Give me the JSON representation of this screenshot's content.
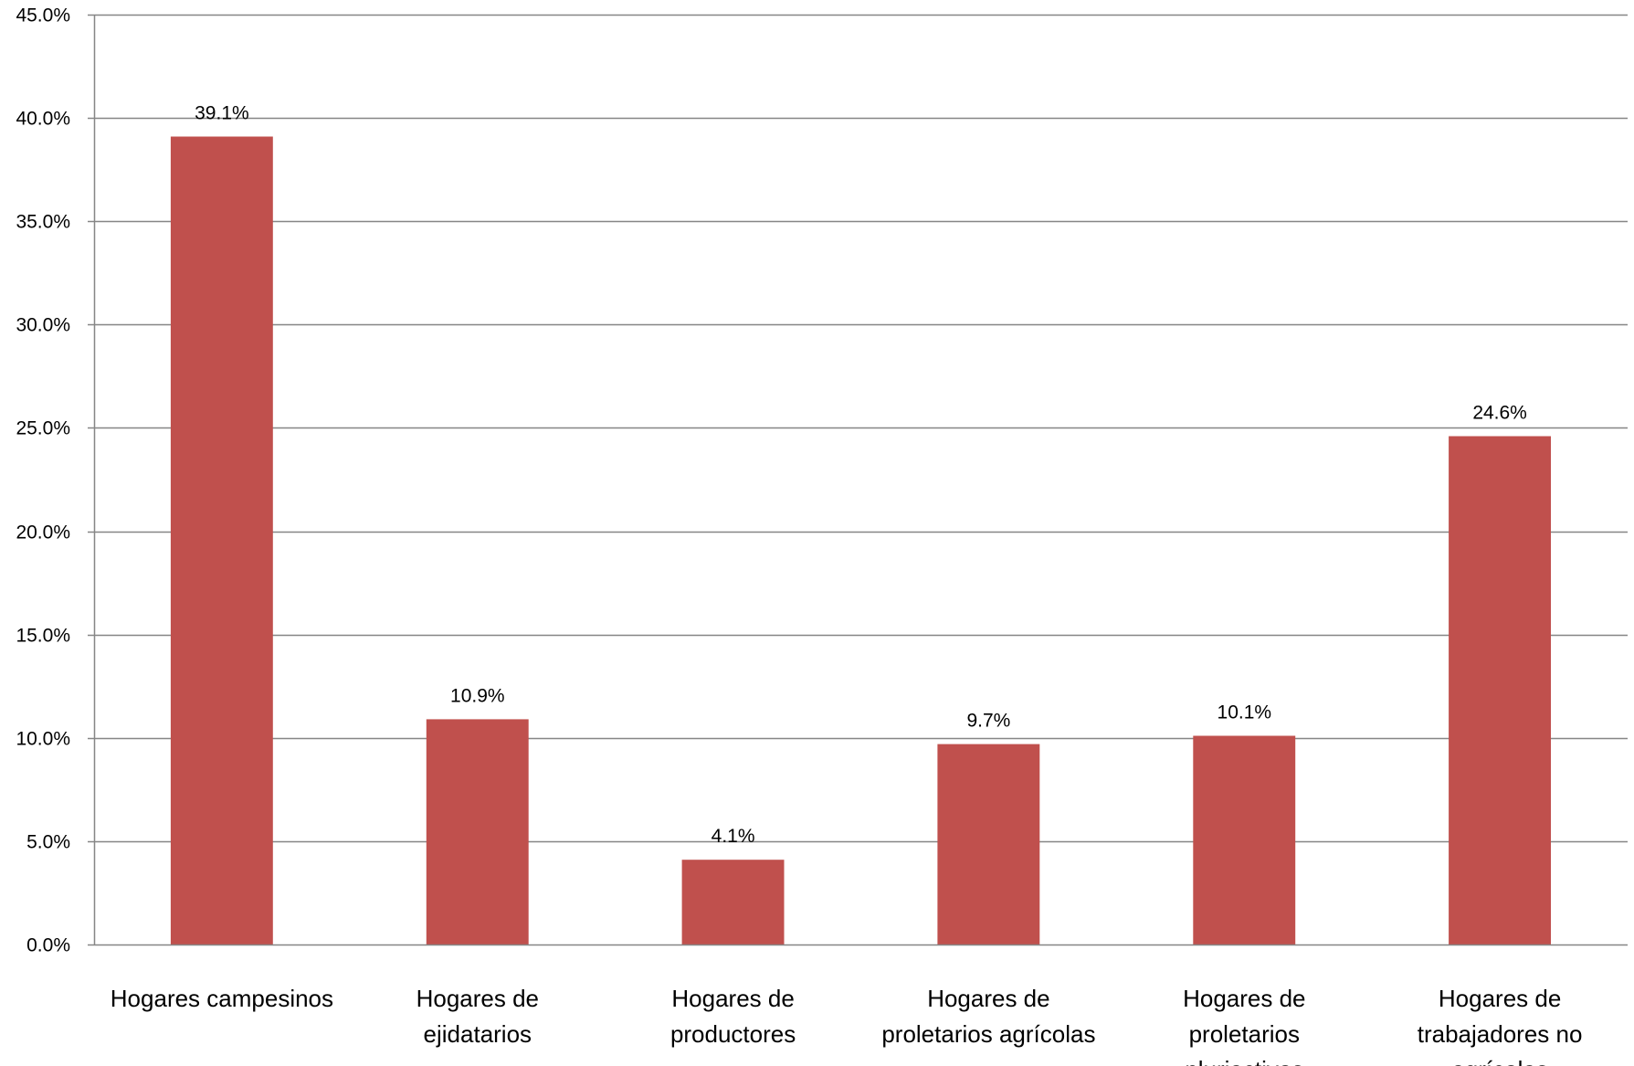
{
  "chart_data": {
    "type": "bar",
    "title": "",
    "xlabel": "",
    "ylabel": "",
    "categories": [
      [
        "Hogares campesinos"
      ],
      [
        "Hogares de",
        "ejidatarios"
      ],
      [
        "Hogares de",
        "productores"
      ],
      [
        "Hogares de",
        "proletarios agrícolas"
      ],
      [
        "Hogares de",
        "proletarios",
        "pluriactivos"
      ],
      [
        "Hogares de",
        "trabajadores no",
        "agrícolas"
      ]
    ],
    "values": [
      39.1,
      10.9,
      4.1,
      9.7,
      10.1,
      24.6
    ],
    "value_labels": [
      "39.1%",
      "10.9%",
      "4.1%",
      "9.7%",
      "10.1%",
      "24.6%"
    ],
    "ylim": [
      0,
      45
    ],
    "yticks": [
      0,
      5,
      10,
      15,
      20,
      25,
      30,
      35,
      40,
      45
    ],
    "ytick_labels": [
      "0.0%",
      "5.0%",
      "10.0%",
      "15.0%",
      "20.0%",
      "25.0%",
      "30.0%",
      "35.0%",
      "40.0%",
      "45.0%"
    ],
    "grid": true,
    "legend": "none",
    "colors": {
      "bar": "#C0504D",
      "grid": "#868686",
      "axis": "#868686"
    }
  }
}
